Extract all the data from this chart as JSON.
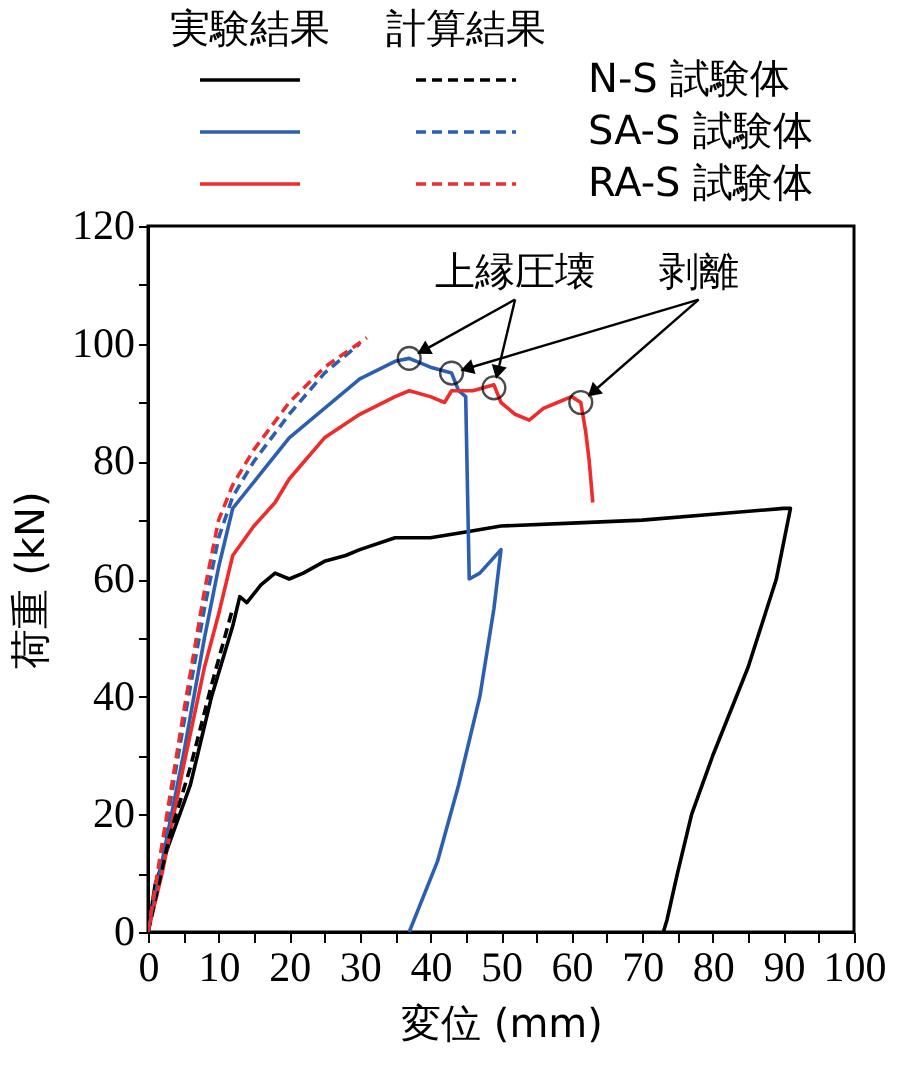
{
  "chart_data": {
    "type": "line",
    "xlabel": "変位 (mm)",
    "ylabel": "荷重 (kN)",
    "xlim": [
      0,
      100
    ],
    "ylim": [
      0,
      120
    ],
    "xticks": [
      0,
      {
        "value": 5,
        "label": null
      },
      10,
      {
        "value": 15,
        "label": null
      },
      20,
      {
        "value": 25,
        "label": null
      },
      30,
      {
        "value": 35,
        "label": null
      },
      40,
      {
        "value": 45,
        "label": null
      },
      50,
      {
        "value": 55,
        "label": null
      },
      60,
      {
        "value": 65,
        "label": null
      },
      70,
      {
        "value": 75,
        "label": null
      },
      80,
      {
        "value": 85,
        "label": null
      },
      90,
      {
        "value": 95,
        "label": null
      },
      100
    ],
    "yticks": [
      0,
      {
        "value": 10,
        "label": null
      },
      20,
      {
        "value": 30,
        "label": null
      },
      40,
      {
        "value": 50,
        "label": null
      },
      60,
      {
        "value": 70,
        "label": null
      },
      80,
      {
        "value": 90,
        "label": null
      },
      100,
      {
        "value": 110,
        "label": null
      },
      120
    ],
    "grid": false,
    "legend": "top",
    "annotations": [
      "実験結果",
      "計算結果",
      {
        "text": "上縁圧壊",
        "x": 37,
        "y": 97.5
      },
      {
        "text": "剥離",
        "x": 61.3,
        "y": 90
      }
    ],
    "series": [
      {
        "name": "N-S 試験体",
        "color": "#000000",
        "line_style": "solid",
        "x": [
          0,
          1,
          3,
          6,
          9,
          12,
          13,
          14,
          16,
          18,
          20,
          22,
          25,
          28,
          30,
          35,
          40,
          45,
          50,
          60,
          70,
          80,
          90,
          91,
          89,
          85,
          80,
          77,
          75,
          73.5,
          73
        ],
        "values": [
          0,
          8,
          15,
          25,
          40,
          52,
          57,
          56,
          59,
          61,
          60,
          61,
          63,
          64,
          65,
          67,
          67,
          68,
          69,
          69.5,
          70,
          71,
          72,
          72,
          60,
          45,
          30,
          20,
          10,
          2,
          0
        ]
      },
      {
        "name": "SA-S 試験体",
        "color": "#2d5fb0",
        "line_style": "solid",
        "x": [
          0,
          2,
          5,
          8,
          10,
          12,
          14,
          16,
          20,
          25,
          30,
          35,
          37,
          40,
          43,
          44,
          45,
          45.5,
          47,
          50,
          49,
          47,
          44,
          41,
          37
        ],
        "values": [
          0,
          12,
          30,
          50,
          62,
          72,
          75,
          78,
          84,
          89,
          94,
          97,
          97.5,
          96,
          95,
          92,
          91,
          60,
          61,
          65,
          55,
          40,
          25,
          12,
          0
        ]
      },
      {
        "name": "RA-S 試験体",
        "color": "#ee2c2c",
        "line_style": "solid",
        "x": [
          0,
          2,
          5,
          8,
          10,
          12,
          15,
          18,
          20,
          25,
          30,
          35,
          37,
          40,
          42,
          43,
          46,
          49,
          50,
          52,
          54,
          56,
          58,
          60,
          61.3,
          62,
          62.5,
          63
        ],
        "values": [
          0,
          10,
          28,
          45,
          54,
          64,
          69,
          73,
          77,
          84,
          88,
          91,
          92,
          91,
          90,
          92,
          92,
          93,
          90,
          88,
          87,
          89,
          90,
          91,
          90,
          85,
          80,
          73
        ]
      },
      {
        "color": "#000000",
        "line_style": "dashed",
        "x": [
          0,
          3,
          6,
          9,
          12
        ],
        "values": [
          0,
          16,
          28,
          42,
          55
        ]
      },
      {
        "color": "#2d5fb0",
        "line_style": "dashed",
        "x": [
          0,
          2,
          5,
          8,
          10,
          12,
          15,
          20,
          25,
          30
        ],
        "values": [
          0,
          14,
          35,
          55,
          67,
          74,
          80,
          88,
          95,
          100
        ]
      },
      {
        "color": "#ee2c2c",
        "line_style": "dashed",
        "x": [
          0,
          2,
          5,
          8,
          10,
          12,
          15,
          20,
          25,
          31
        ],
        "values": [
          0,
          15,
          37,
          58,
          70,
          76,
          82,
          90,
          96,
          101
        ]
      },
      {
        "type": "scatter",
        "marker": "circle",
        "color": "#000000",
        "x": [
          37,
          43,
          49,
          61.3
        ],
        "values": [
          97.5,
          95,
          92.5,
          90
        ]
      }
    ]
  }
}
